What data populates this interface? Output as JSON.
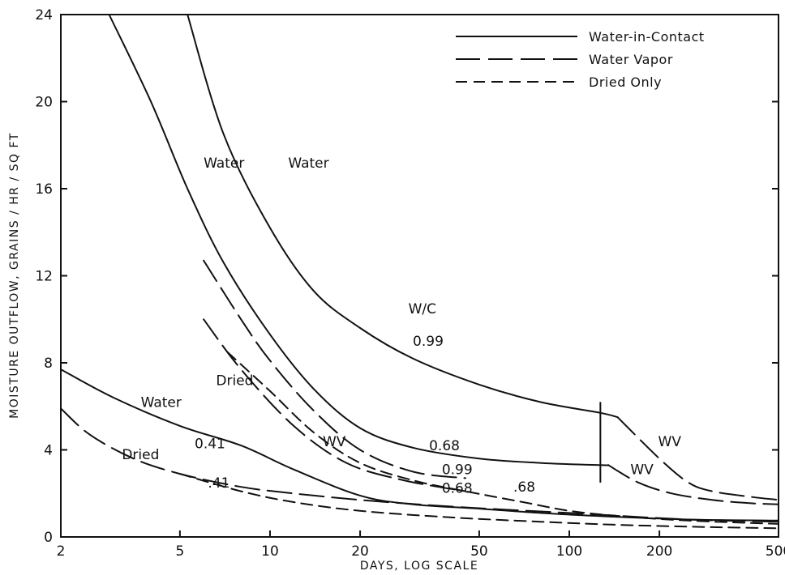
{
  "chart_data": {
    "type": "line",
    "xlabel": "DAYS, LOG SCALE",
    "ylabel": "MOISTURE OUTFLOW, GRAINS / HR / SQ FT",
    "x_scale": "log",
    "xlim": [
      2,
      500
    ],
    "ylim": [
      0,
      24
    ],
    "x_ticks": [
      2,
      5,
      10,
      20,
      50,
      100,
      200,
      500
    ],
    "y_ticks": [
      0,
      4,
      8,
      12,
      16,
      20,
      24
    ],
    "legend": {
      "placement": "top-right",
      "entries": [
        {
          "label": "Water-in-Contact",
          "style": "solid"
        },
        {
          "label": "Water Vapor",
          "style": "long-dash"
        },
        {
          "label": "Dried Only",
          "style": "dash"
        }
      ]
    },
    "series": [
      {
        "style": "solid",
        "x": [
          5.3,
          7,
          10,
          14,
          20,
          30,
          50,
          80,
          127,
          145
        ],
        "y": [
          24,
          18.5,
          14.2,
          11.3,
          9.6,
          8.2,
          7,
          6.2,
          5.7,
          5.5
        ]
      },
      {
        "style": "long-dash",
        "x": [
          145,
          200,
          250,
          300,
          400,
          500
        ],
        "y": [
          5.5,
          3.6,
          2.5,
          2.1,
          1.85,
          1.7
        ]
      },
      {
        "style": "solid",
        "x": [
          2.9,
          4,
          5.3,
          7,
          10,
          14,
          20,
          30,
          50,
          80,
          127,
          135
        ],
        "y": [
          24,
          20,
          16,
          12.6,
          9.3,
          6.8,
          5,
          4.1,
          3.6,
          3.4,
          3.3,
          3.3
        ]
      },
      {
        "style": "long-dash",
        "x": [
          135,
          170,
          220,
          300,
          400,
          500
        ],
        "y": [
          3.3,
          2.5,
          2,
          1.7,
          1.55,
          1.5
        ]
      },
      {
        "style": "long-dash",
        "x": [
          6,
          8,
          10,
          14,
          20,
          30,
          45
        ],
        "y": [
          12.7,
          10,
          8.1,
          5.8,
          4,
          3,
          2.7
        ]
      },
      {
        "style": "long-dash",
        "x": [
          6,
          8,
          12,
          18,
          28,
          45
        ],
        "y": [
          10,
          7.7,
          5.1,
          3.4,
          2.6,
          2.1
        ]
      },
      {
        "style": "dash",
        "x": [
          7.2,
          10,
          14,
          20,
          30,
          45,
          70,
          100,
          150,
          250,
          500
        ],
        "y": [
          8.5,
          6.7,
          4.8,
          3.4,
          2.6,
          2.1,
          1.6,
          1.2,
          0.95,
          0.75,
          0.6
        ]
      },
      {
        "style": "solid",
        "x": [
          2,
          3,
          5,
          8,
          12,
          20,
          30,
          50,
          80,
          130,
          250,
          500
        ],
        "y": [
          7.7,
          6.4,
          5.1,
          4.2,
          3.1,
          1.9,
          1.5,
          1.3,
          1.1,
          0.95,
          0.8,
          0.75
        ]
      },
      {
        "style": "long-dash",
        "x": [
          2,
          2.5,
          3.5,
          5,
          8,
          12,
          20,
          40,
          100,
          250,
          500
        ],
        "y": [
          5.9,
          4.7,
          3.6,
          2.9,
          2.3,
          2,
          1.7,
          1.4,
          1.1,
          0.8,
          0.7
        ]
      },
      {
        "style": "dash",
        "x": [
          5,
          8,
          12,
          20,
          40,
          80,
          150,
          300,
          500
        ],
        "y": [
          2.9,
          2.1,
          1.6,
          1.2,
          0.9,
          0.7,
          0.55,
          0.45,
          0.4
        ]
      }
    ],
    "vertical_line": {
      "x": 127,
      "y_range": [
        2.5,
        6.2
      ]
    },
    "annotations": [
      {
        "text": "Water",
        "x": 6,
        "y": 17.2
      },
      {
        "text": "Water",
        "x": 11.5,
        "y": 17.2
      },
      {
        "text": "W/C",
        "x": 29,
        "y": 10.5
      },
      {
        "text": "0.99",
        "x": 30,
        "y": 9
      },
      {
        "text": "Dried",
        "x": 6.6,
        "y": 7.2
      },
      {
        "text": "Water",
        "x": 3.7,
        "y": 6.2
      },
      {
        "text": "0.41",
        "x": 5.6,
        "y": 4.3
      },
      {
        "text": "WV",
        "x": 15,
        "y": 4.4
      },
      {
        "text": "0.68",
        "x": 34,
        "y": 4.2
      },
      {
        "text": "Dried",
        "x": 3.2,
        "y": 3.8
      },
      {
        "text": ".41",
        "x": 6.2,
        "y": 2.5
      },
      {
        "text": "0.99",
        "x": 37.5,
        "y": 3.1
      },
      {
        "text": "0.68",
        "x": 37.5,
        "y": 2.25
      },
      {
        "text": ".68",
        "x": 65,
        "y": 2.3
      },
      {
        "text": "WV",
        "x": 198,
        "y": 4.4
      },
      {
        "text": "WV",
        "x": 160,
        "y": 3.1
      }
    ]
  }
}
